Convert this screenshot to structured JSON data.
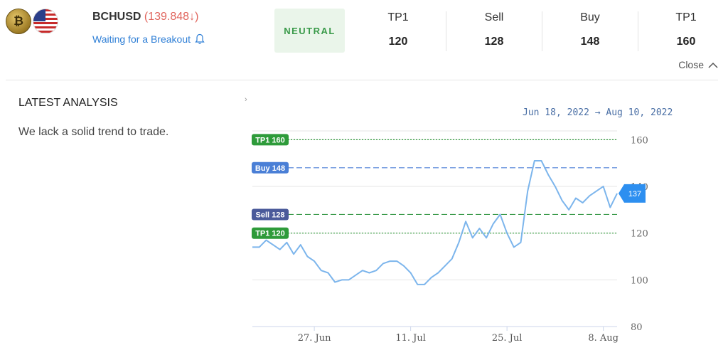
{
  "header": {
    "symbol": "BCHUSD",
    "price": "(139.848↓)",
    "status": "Waiting for a Breakout",
    "sentiment": "NEUTRAL",
    "levels": [
      {
        "label": "TP1",
        "value": "120"
      },
      {
        "label": "Sell",
        "value": "128"
      },
      {
        "label": "Buy",
        "value": "148"
      },
      {
        "label": "TP1",
        "value": "160"
      }
    ],
    "close_label": "Close"
  },
  "icons": {
    "base_coin": "bitcoin-cash-coin-icon",
    "quote_coin": "us-flag-icon",
    "bell": "bell-icon",
    "collapse": "chevron-up-icon",
    "expand": "chevron-right-icon"
  },
  "analysis": {
    "title": "LATEST ANALYSIS",
    "text": "We lack a solid trend to trade."
  },
  "date_range": "Jun 18, 2022 → Aug 10, 2022",
  "chart_data": {
    "type": "line",
    "x_start": "2022-06-18",
    "x_end": "2022-08-10",
    "x_ticks": [
      {
        "date": "2022-06-27",
        "label": "27. Jun"
      },
      {
        "date": "2022-07-11",
        "label": "11. Jul"
      },
      {
        "date": "2022-07-25",
        "label": "25. Jul"
      },
      {
        "date": "2022-08-08",
        "label": "8. Aug"
      }
    ],
    "y_ticks": [
      80,
      100,
      120,
      140,
      160
    ],
    "ylim": [
      80,
      165
    ],
    "last_value": "137",
    "series": [
      {
        "values": [
          [
            "2022-06-18",
            114
          ],
          [
            "2022-06-19",
            114
          ],
          [
            "2022-06-20",
            117
          ],
          [
            "2022-06-21",
            115
          ],
          [
            "2022-06-22",
            113
          ],
          [
            "2022-06-23",
            116
          ],
          [
            "2022-06-24",
            111
          ],
          [
            "2022-06-25",
            115
          ],
          [
            "2022-06-26",
            110
          ],
          [
            "2022-06-27",
            108
          ],
          [
            "2022-06-28",
            104
          ],
          [
            "2022-06-29",
            103
          ],
          [
            "2022-06-30",
            99
          ],
          [
            "2022-07-01",
            100
          ],
          [
            "2022-07-02",
            100
          ],
          [
            "2022-07-03",
            102
          ],
          [
            "2022-07-04",
            104
          ],
          [
            "2022-07-05",
            103
          ],
          [
            "2022-07-06",
            104
          ],
          [
            "2022-07-07",
            107
          ],
          [
            "2022-07-08",
            108
          ],
          [
            "2022-07-09",
            108
          ],
          [
            "2022-07-10",
            106
          ],
          [
            "2022-07-11",
            103
          ],
          [
            "2022-07-12",
            98
          ],
          [
            "2022-07-13",
            98
          ],
          [
            "2022-07-14",
            101
          ],
          [
            "2022-07-15",
            103
          ],
          [
            "2022-07-16",
            106
          ],
          [
            "2022-07-17",
            109
          ],
          [
            "2022-07-18",
            116
          ],
          [
            "2022-07-19",
            125
          ],
          [
            "2022-07-20",
            118
          ],
          [
            "2022-07-21",
            122
          ],
          [
            "2022-07-22",
            118
          ],
          [
            "2022-07-23",
            124
          ],
          [
            "2022-07-24",
            128
          ],
          [
            "2022-07-25",
            120
          ],
          [
            "2022-07-26",
            114
          ],
          [
            "2022-07-27",
            116
          ],
          [
            "2022-07-28",
            138
          ],
          [
            "2022-07-29",
            151
          ],
          [
            "2022-07-30",
            151
          ],
          [
            "2022-07-31",
            145
          ],
          [
            "2022-08-01",
            140
          ],
          [
            "2022-08-02",
            134
          ],
          [
            "2022-08-03",
            130
          ],
          [
            "2022-08-04",
            135
          ],
          [
            "2022-08-05",
            133
          ],
          [
            "2022-08-06",
            136
          ],
          [
            "2022-08-07",
            138
          ],
          [
            "2022-08-08",
            140
          ],
          [
            "2022-08-09",
            131
          ],
          [
            "2022-08-10",
            137
          ]
        ]
      }
    ],
    "reference_lines": [
      {
        "label": "TP1 160",
        "value": 160,
        "color": "#2e9b3a",
        "dash": "2,2"
      },
      {
        "label": "Buy 148",
        "value": 148,
        "color": "#4a7fd6",
        "dash": "8,4"
      },
      {
        "label": "Sell 128",
        "value": 128,
        "color": "#3a9a4a",
        "dash": "8,4",
        "badge_color": "#4a5a9a"
      },
      {
        "label": "TP1 120",
        "value": 120,
        "color": "#2e9b3a",
        "dash": "2,2"
      }
    ],
    "line_color": "#7cb5ec",
    "grid": true
  }
}
